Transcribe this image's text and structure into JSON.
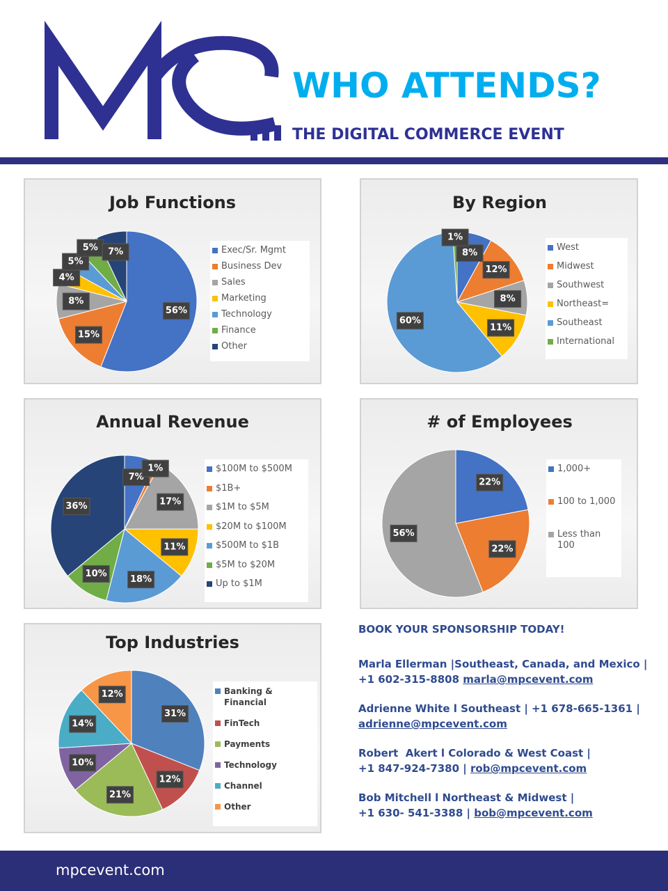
{
  "header": {
    "headline": "WHO ATTENDS?",
    "subheadline": "THE DIGITAL COMMERCE EVENT"
  },
  "chart_data": [
    {
      "type": "pie",
      "title": "Job Functions",
      "categories": [
        "Exec/Sr. Mgmt",
        "Business Dev",
        "Sales",
        "Marketing",
        "Technology",
        "Finance",
        "Other"
      ],
      "values": [
        56,
        15,
        8,
        4,
        5,
        5,
        7
      ],
      "value_labels": [
        "56%",
        "15%",
        "8%",
        "4%",
        "5%",
        "5%",
        "7%"
      ],
      "colors": [
        "#4472c4",
        "#ed7d31",
        "#a5a5a5",
        "#ffc000",
        "#5b9bd5",
        "#70ad47",
        "#264478"
      ]
    },
    {
      "type": "pie",
      "title": "By Region",
      "categories": [
        "West",
        "Midwest",
        "Southwest",
        "Northeast=",
        "Southeast",
        "International"
      ],
      "values": [
        8,
        12,
        8,
        11,
        60,
        1
      ],
      "value_labels": [
        "8%",
        "12%",
        "8%",
        "11%",
        "60%",
        "1%"
      ],
      "colors": [
        "#4472c4",
        "#ed7d31",
        "#a5a5a5",
        "#ffc000",
        "#5b9bd5",
        "#70ad47"
      ]
    },
    {
      "type": "pie",
      "title": "Annual Revenue",
      "categories": [
        "$100M to $500M",
        "$1B+",
        "$1M to $5M",
        "$20M to $100M",
        "$500M to $1B",
        "$5M to $20M",
        "Up to $1M"
      ],
      "values": [
        7,
        1,
        17,
        11,
        18,
        10,
        36
      ],
      "value_labels": [
        "7%",
        "1%",
        "17%",
        "11%",
        "18%",
        "10%",
        "36%"
      ],
      "colors": [
        "#4472c4",
        "#ed7d31",
        "#a5a5a5",
        "#ffc000",
        "#5b9bd5",
        "#70ad47",
        "#264478"
      ]
    },
    {
      "type": "pie",
      "title": "# of Employees",
      "categories": [
        "1,000+",
        "100 to 1,000",
        "Less than 100"
      ],
      "values": [
        22,
        22,
        56
      ],
      "value_labels": [
        "22%",
        "22%",
        "56%"
      ],
      "colors": [
        "#4472c4",
        "#ed7d31",
        "#a5a5a5"
      ]
    },
    {
      "type": "pie",
      "title": "Top Industries",
      "categories": [
        "Banking & Financial",
        "FinTech",
        "Payments",
        "Technology",
        "Channel",
        "Other"
      ],
      "values": [
        31,
        12,
        21,
        10,
        14,
        12
      ],
      "value_labels": [
        "31%",
        "12%",
        "21%",
        "10%",
        "14%",
        "12%"
      ],
      "colors": [
        "#4f81bd",
        "#c0504d",
        "#9bbb59",
        "#8064a2",
        "#4bacc6",
        "#f79646"
      ]
    }
  ],
  "contacts": {
    "heading": "BOOK YOUR SPONSORSHIP TODAY!",
    "items": [
      {
        "lines": [
          "Marla Ellerman |Southeast, Canada, and Mexico |",
          "+1 602-315-8808"
        ],
        "email": "marla@mpcevent.com"
      },
      {
        "lines": [
          "Adrienne White l Southeast | +1 678-665-1361 |"
        ],
        "email": "adrienne@mpcevent.com"
      },
      {
        "lines": [
          "Robert  Akert l Colorado & West Coast |",
          "+1 847-924-7380 |"
        ],
        "email": "rob@mpcevent.com"
      },
      {
        "lines": [
          "Bob Mitchell l Northeast & Midwest |",
          "+1 630- 541-3388 |"
        ],
        "email": "bob@mpcevent.com"
      }
    ]
  },
  "footer": {
    "url": "mpcevent.com"
  }
}
